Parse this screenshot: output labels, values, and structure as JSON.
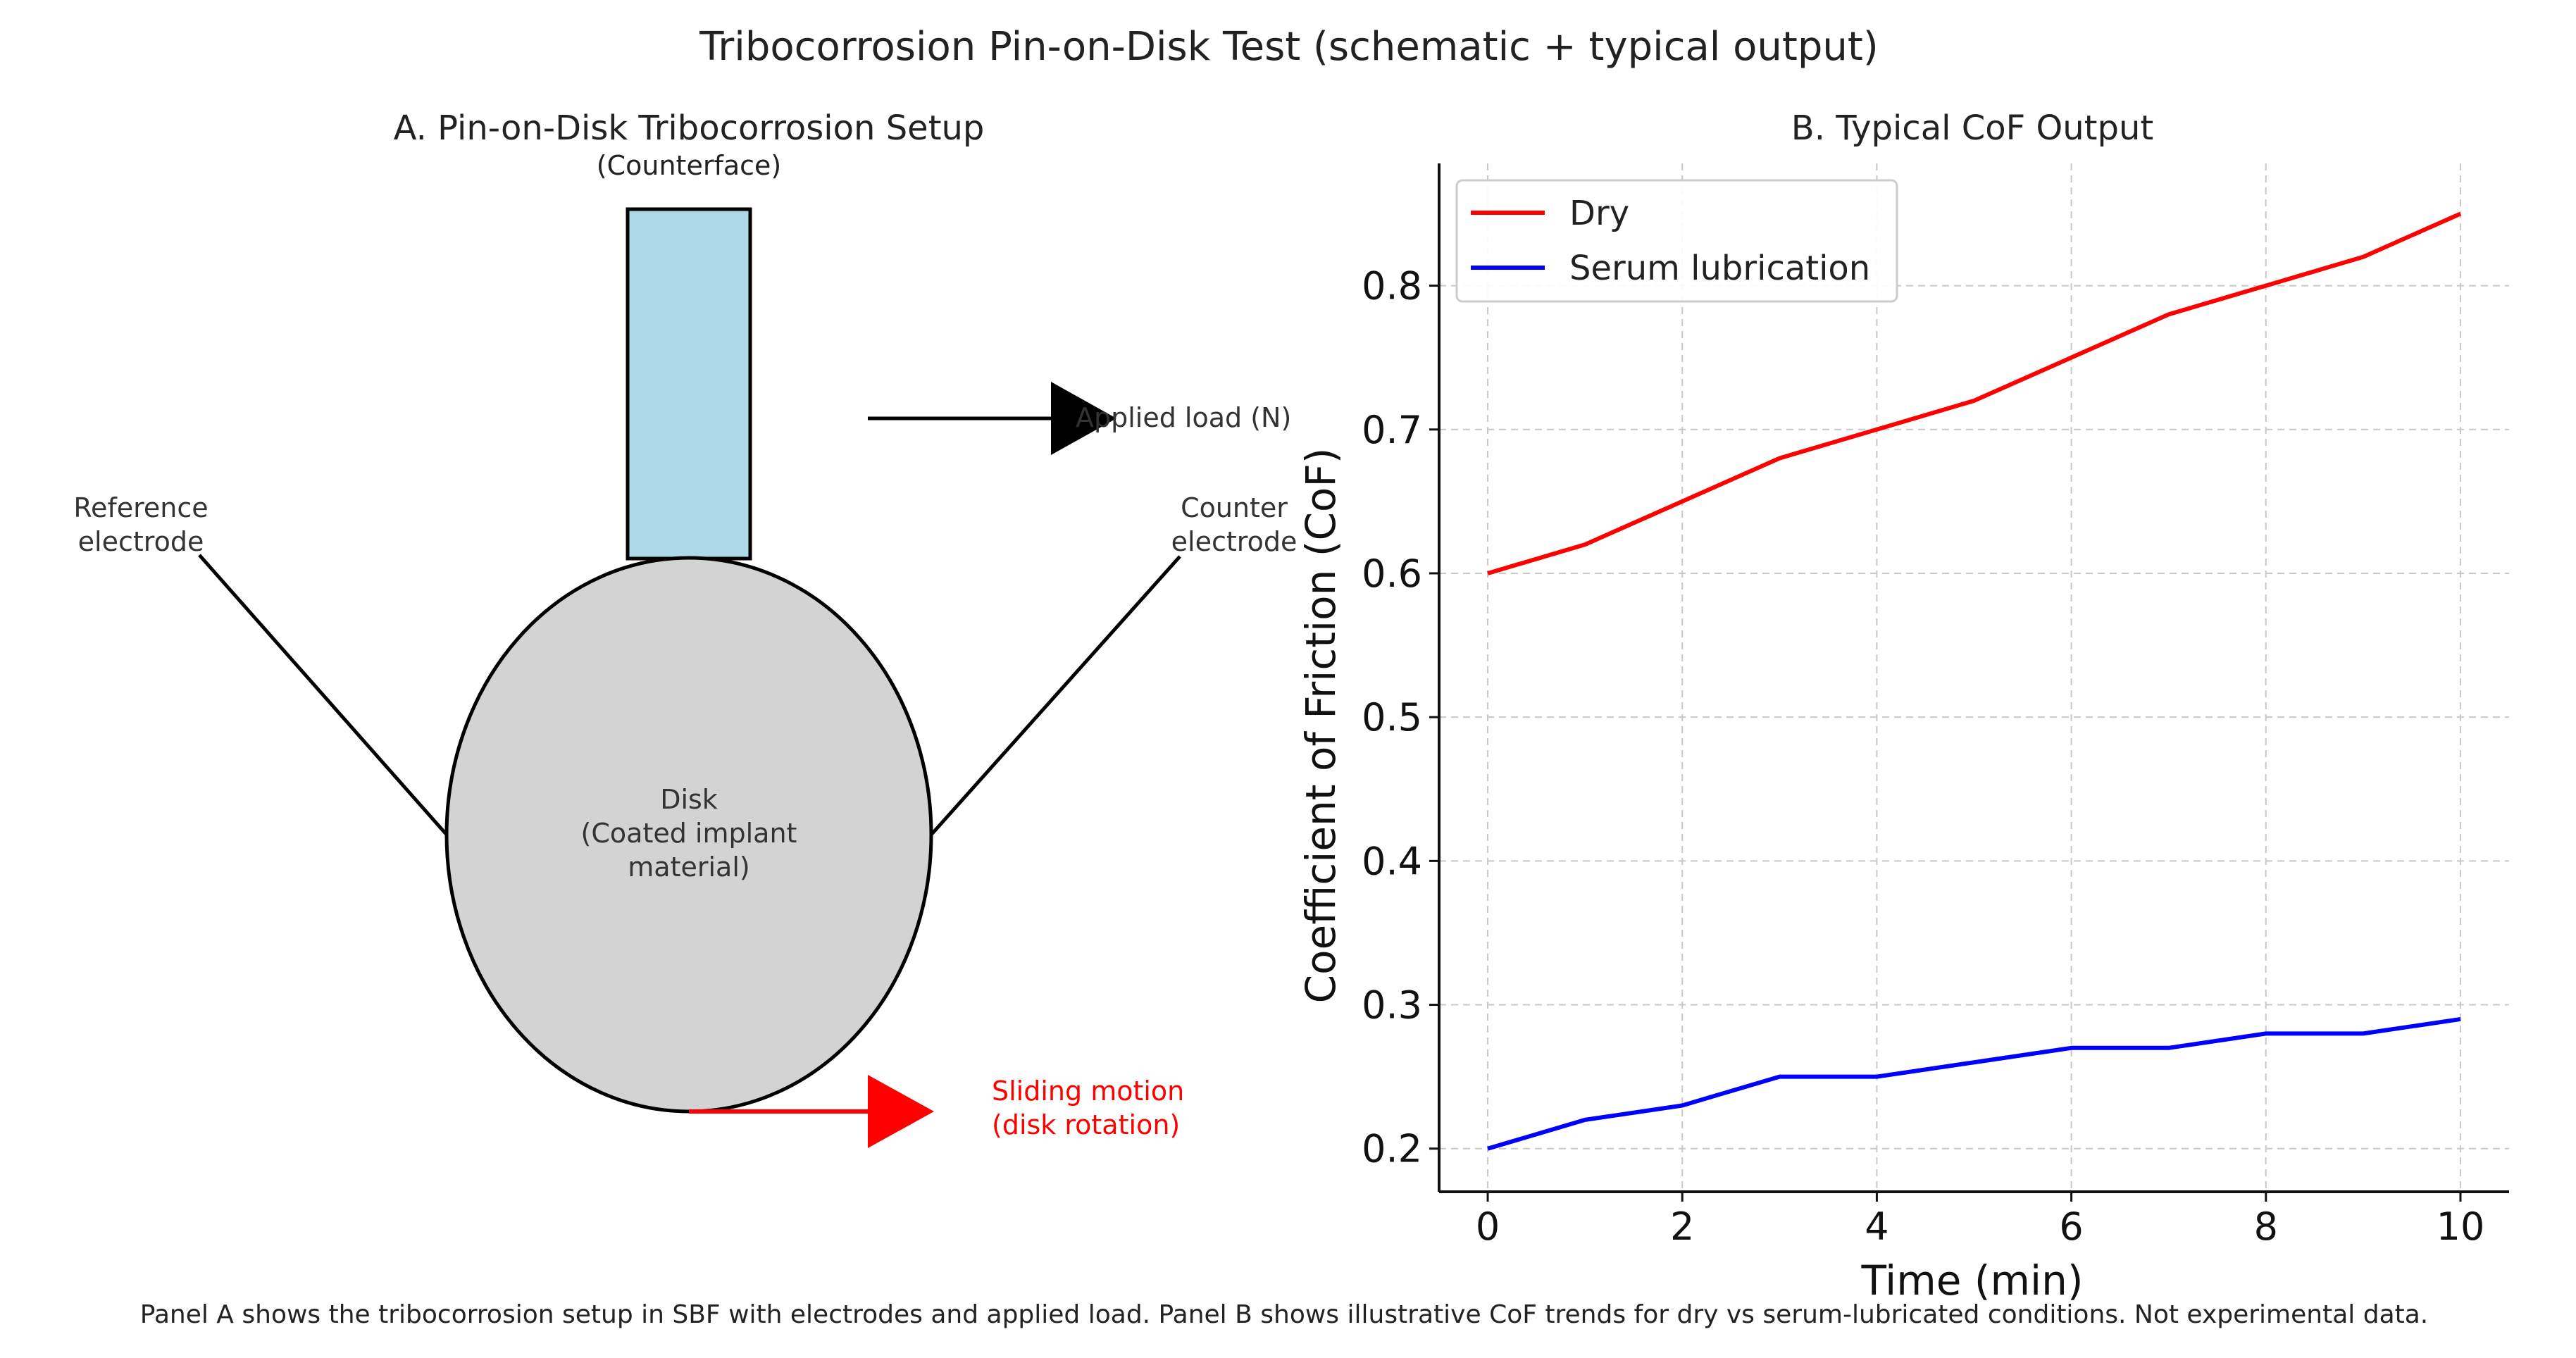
{
  "figure": {
    "title": "Tribocorrosion Pin-on-Disk Test (schematic + typical output)",
    "caption": "Panel A shows the tribocorrosion setup in SBF with electrodes and applied load. Panel B shows illustrative CoF trends for dry vs serum-lubricated conditions. Not experimental data."
  },
  "panel_a": {
    "title": "A. Pin-on-Disk Tribocorrosion Setup",
    "pin_label": "(Counterface)",
    "disk_label_line1": "Disk",
    "disk_label_line2": "(Coated implant",
    "disk_label_line3": "material)",
    "load_label": "Applied load (N)",
    "reference_line1": "Reference",
    "reference_line2": "electrode",
    "counter_line1": "Counter",
    "counter_line2": "electrode",
    "sliding_line1": "Sliding motion",
    "sliding_line2": "(disk rotation)",
    "colors": {
      "pin": "#add8e6",
      "disk": "#d3d3d3",
      "motion": "#ff0000",
      "load": "#000000"
    }
  },
  "chart_data": {
    "type": "line",
    "title": "B. Typical CoF Output",
    "xlabel": "Time (min)",
    "ylabel": "Coefficient of Friction (CoF)",
    "x": [
      0,
      1,
      2,
      3,
      4,
      5,
      6,
      7,
      8,
      9,
      10
    ],
    "xlim": [
      -0.5,
      10.5
    ],
    "ylim": [
      0.17,
      0.885
    ],
    "xticks": [
      0,
      2,
      4,
      6,
      8,
      10
    ],
    "yticks": [
      0.2,
      0.3,
      0.4,
      0.5,
      0.6,
      0.7,
      0.8
    ],
    "grid": true,
    "legend_position": "top-left",
    "series": [
      {
        "name": "Dry",
        "color": "#ff0000",
        "values": [
          0.6,
          0.62,
          0.65,
          0.68,
          0.7,
          0.72,
          0.75,
          0.78,
          0.8,
          0.82,
          0.85
        ]
      },
      {
        "name": "Serum lubrication",
        "color": "#0000ff",
        "values": [
          0.2,
          0.22,
          0.23,
          0.25,
          0.25,
          0.26,
          0.27,
          0.27,
          0.28,
          0.28,
          0.29
        ]
      }
    ]
  }
}
